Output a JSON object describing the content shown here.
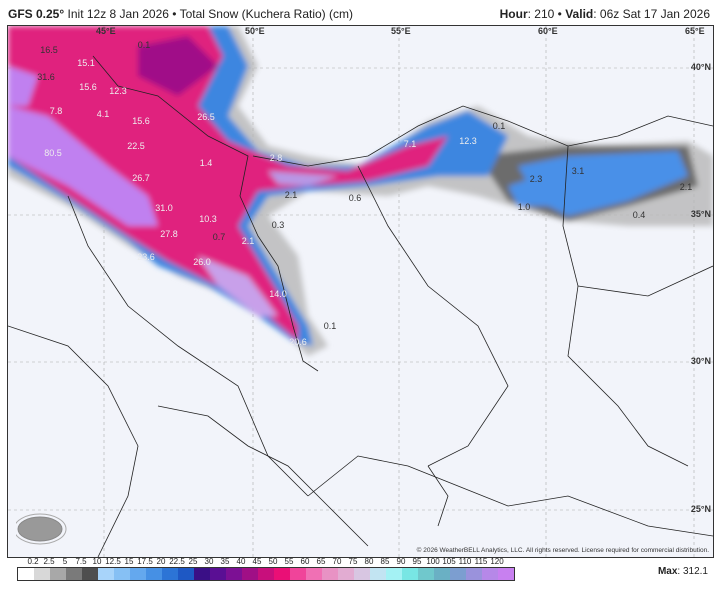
{
  "header": {
    "model": "GFS 0.25",
    "degree": "°",
    "init": "Init 12z 8 Jan 2026",
    "separator": "•",
    "product": "Total Snow (Kuchera Ratio) (cm)",
    "hour_label": "Hour",
    "hour": "210",
    "valid_label": "Valid",
    "valid": "06z Sat 17 Jan 2026"
  },
  "map": {
    "lon_labels": [
      "45°E",
      "50°E",
      "55°E",
      "60°E",
      "65°E"
    ],
    "lat_labels": [
      "40°N",
      "35°N",
      "30°N",
      "25°N"
    ],
    "snow_labels": [
      "16.5",
      "31.6",
      "15.1",
      "15.6",
      "12.3",
      "7.8",
      "4.1",
      "15.6",
      "26.5",
      "22.5",
      "1.4",
      "80.5",
      "26.7",
      "0.1",
      "31.0",
      "10.3",
      "27.8",
      "0.7",
      "2.1",
      "23.6",
      "26.0",
      "14.0",
      "20.6",
      "0.3",
      "0.1",
      "0.1",
      "12.3",
      "7.1",
      "2.8",
      "2.1",
      "0.6",
      "2.3",
      "3.1",
      "1.0",
      "2.1",
      "0.4"
    ],
    "copyright": "© 2026 WeatherBELL Analytics, LLC. All rights reserved. License required for commercial distribution.",
    "logo_text": "WeatherBELL"
  },
  "colorbar": {
    "labels": [
      "0.2",
      "2.5",
      "5",
      "7.5",
      "10",
      "12.5",
      "15",
      "17.5",
      "20",
      "22.5",
      "25",
      "30",
      "35",
      "40",
      "45",
      "50",
      "55",
      "60",
      "65",
      "70",
      "75",
      "80",
      "85",
      "90",
      "95",
      "100",
      "105",
      "110",
      "115",
      "120"
    ],
    "colors": [
      "#ffffff",
      "#d8d8d8",
      "#a8a8a8",
      "#7a7a7a",
      "#4e4e4e",
      "#a8d4fa",
      "#86c0f4",
      "#64a8ee",
      "#4690e4",
      "#2c74d6",
      "#1e58c4",
      "#3a0f86",
      "#5a0f94",
      "#7c1094",
      "#a00f86",
      "#c80f7c",
      "#ea0f76",
      "#f0449a",
      "#f070b4",
      "#e892c4",
      "#e2acd2",
      "#d8c6e2",
      "#c2e4f2",
      "#a4f2f4",
      "#78e6e4",
      "#70c8cc",
      "#6ab0c4",
      "#7c9ed0",
      "#9a92dc",
      "#b688e8",
      "#c880f0"
    ],
    "max_label": "Max",
    "max_value": "312.1"
  }
}
